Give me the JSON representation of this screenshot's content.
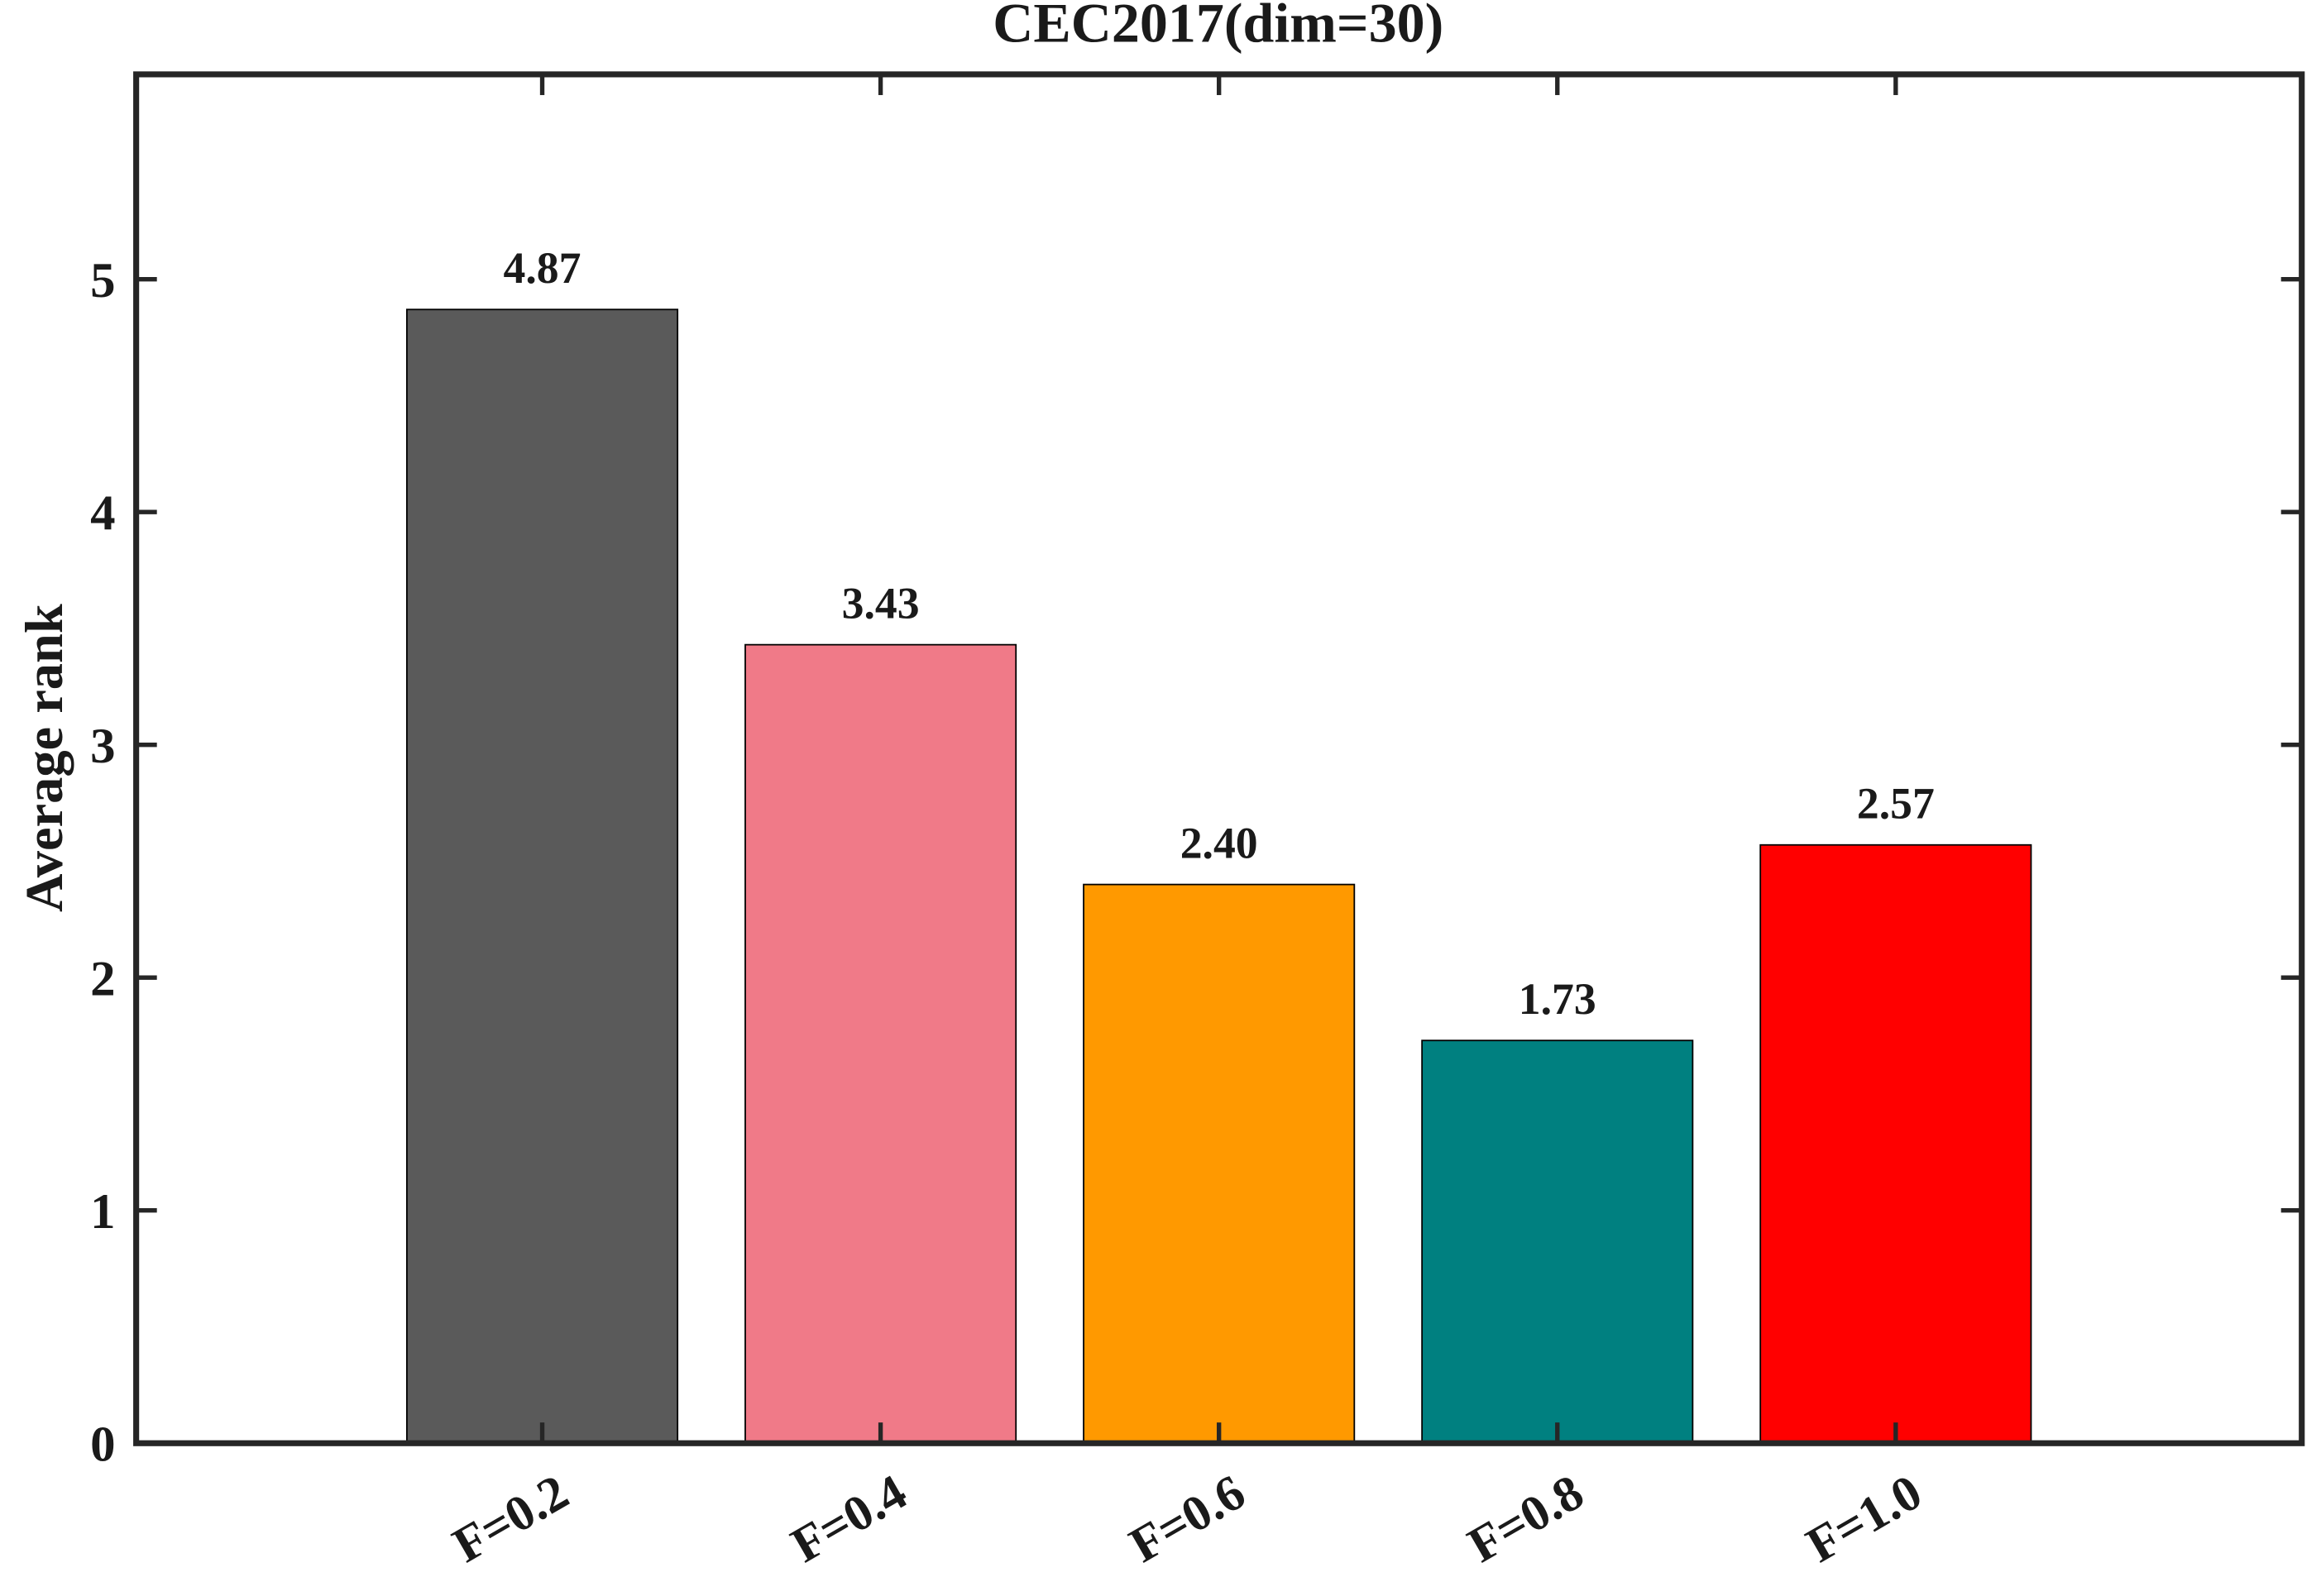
{
  "chart_data": {
    "type": "bar",
    "title": "CEC2017(dim=30)",
    "y_label": "Average rank",
    "categories": [
      "F=0.2",
      "F=0.4",
      "F=0.6",
      "F=0.8",
      "F=1.0"
    ],
    "values": [
      4.87,
      3.43,
      2.4,
      1.73,
      2.57
    ],
    "value_labels": [
      "4.87",
      "3.43",
      "2.40",
      "1.73",
      "2.57"
    ],
    "colors": [
      "#5a5a5a",
      "#f07a88",
      "#ff9900",
      "#008080",
      "#ff0000"
    ],
    "ylim": [
      0,
      5.88
    ],
    "yticks": [
      0,
      1,
      2,
      3,
      4,
      5
    ],
    "grid": false
  }
}
